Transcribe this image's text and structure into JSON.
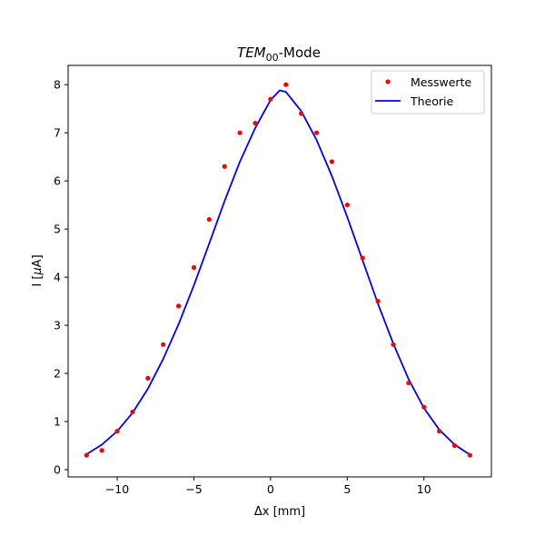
{
  "chart_data": {
    "type": "scatter",
    "title": {
      "main": "TEM",
      "subscript": "00",
      "suffix": "-Mode"
    },
    "xlabel": "Δx [mm]",
    "ylabel": {
      "prefix": "I [",
      "symbol": "μ",
      "suffix": "A]"
    },
    "xlim": [
      -13.2,
      14.4
    ],
    "ylim": [
      -0.15,
      8.4
    ],
    "xticks": [
      -10,
      -5,
      0,
      5,
      10
    ],
    "yticks": [
      0,
      1,
      2,
      3,
      4,
      5,
      6,
      7,
      8
    ],
    "grid": false,
    "legend_position": "top-right",
    "series": [
      {
        "name": "Messwerte",
        "kind": "points",
        "color": "#ff0000",
        "x": [
          -12,
          -11,
          -10,
          -9,
          -8,
          -7,
          -6,
          -5,
          -4,
          -3,
          -2,
          -1,
          0,
          1,
          2,
          3,
          4,
          5,
          6,
          7,
          8,
          9,
          10,
          11,
          12,
          13
        ],
        "y": [
          0.3,
          0.4,
          0.8,
          1.2,
          1.9,
          2.6,
          3.4,
          4.2,
          5.2,
          6.3,
          7.0,
          7.2,
          7.7,
          8.0,
          7.4,
          7.0,
          6.4,
          5.5,
          4.4,
          3.5,
          2.6,
          1.8,
          1.3,
          0.8,
          0.5,
          0.3
        ]
      },
      {
        "name": "Theorie",
        "kind": "line",
        "color": "#0000ff",
        "x": [
          -12,
          -11,
          -10,
          -9,
          -8,
          -7,
          -6,
          -5,
          -4,
          -3,
          -2,
          -1,
          0,
          0.6,
          1,
          2,
          3,
          4,
          5,
          6,
          7,
          8,
          9,
          10,
          11,
          12,
          13
        ],
        "y": [
          0.32,
          0.52,
          0.8,
          1.18,
          1.68,
          2.3,
          3.02,
          3.83,
          4.7,
          5.58,
          6.4,
          7.1,
          7.68,
          7.88,
          7.85,
          7.45,
          6.85,
          6.1,
          5.25,
          4.35,
          3.45,
          2.62,
          1.88,
          1.28,
          0.83,
          0.52,
          0.31
        ]
      }
    ]
  }
}
